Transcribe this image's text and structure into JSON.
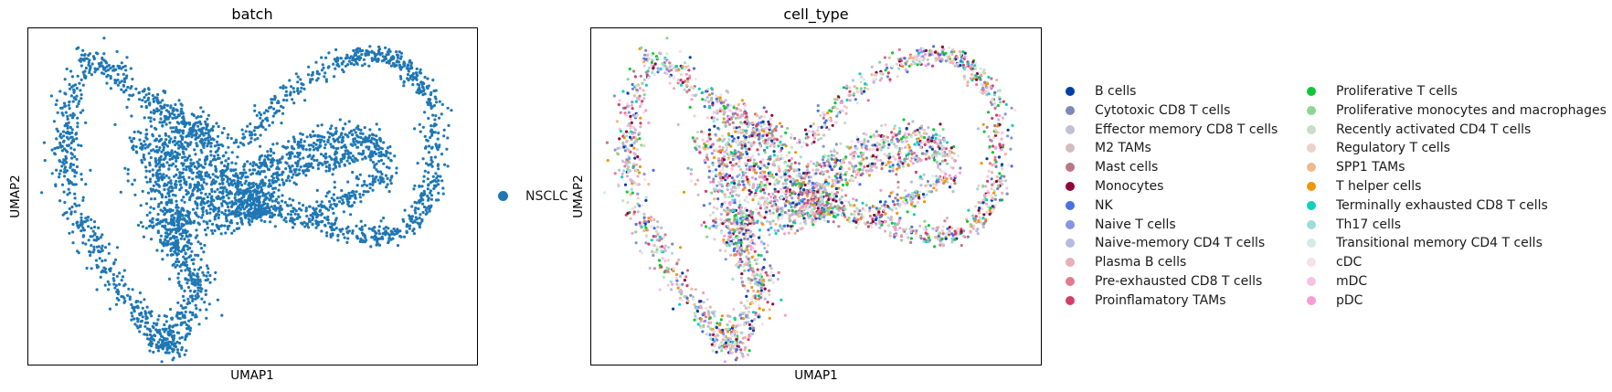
{
  "chart_data": [
    {
      "type": "scatter",
      "title": "batch",
      "xlabel": "UMAP1",
      "ylabel": "UMAP2",
      "legend": [
        {
          "name": "NSCLC",
          "color": "#1f77b4"
        }
      ]
    },
    {
      "type": "scatter",
      "title": "cell_type",
      "xlabel": "UMAP1",
      "ylabel": "UMAP2",
      "legend": [
        {
          "name": "B cells",
          "color": "#023fa5"
        },
        {
          "name": "Cytotoxic CD8 T cells",
          "color": "#7d87b9"
        },
        {
          "name": "Effector memory CD8 T cells",
          "color": "#bec1d4"
        },
        {
          "name": "M2 TAMs",
          "color": "#d6bcc0"
        },
        {
          "name": "Mast cells",
          "color": "#bb7784"
        },
        {
          "name": "Monocytes",
          "color": "#8e063b"
        },
        {
          "name": "NK",
          "color": "#4a6fe3"
        },
        {
          "name": "Naive T cells",
          "color": "#8595e1"
        },
        {
          "name": "Naive-memory CD4 T cells",
          "color": "#b5bbe3"
        },
        {
          "name": "Plasma B cells",
          "color": "#e6afb9"
        },
        {
          "name": "Pre-exhausted CD8 T cells",
          "color": "#e07b91"
        },
        {
          "name": "Proinflamatory TAMs",
          "color": "#d33f6a"
        },
        {
          "name": "Proliferative T cells",
          "color": "#11c638"
        },
        {
          "name": "Proliferative monocytes and macrophages",
          "color": "#8dd593"
        },
        {
          "name": "Recently activated CD4 T cells",
          "color": "#c6dec7"
        },
        {
          "name": "Regulatory T cells",
          "color": "#ead3c6"
        },
        {
          "name": "SPP1 TAMs",
          "color": "#f0b98d"
        },
        {
          "name": "T helper cells",
          "color": "#ef9708"
        },
        {
          "name": "Terminally exhausted CD8 T cells",
          "color": "#0fcfc0"
        },
        {
          "name": "Th17 cells",
          "color": "#9cded6"
        },
        {
          "name": "Transitional memory CD4 T cells",
          "color": "#d5eae7"
        },
        {
          "name": "cDC",
          "color": "#f3e1eb"
        },
        {
          "name": "mDC",
          "color": "#f6c4e1"
        },
        {
          "name": "pDC",
          "color": "#f79cd4"
        }
      ]
    }
  ]
}
